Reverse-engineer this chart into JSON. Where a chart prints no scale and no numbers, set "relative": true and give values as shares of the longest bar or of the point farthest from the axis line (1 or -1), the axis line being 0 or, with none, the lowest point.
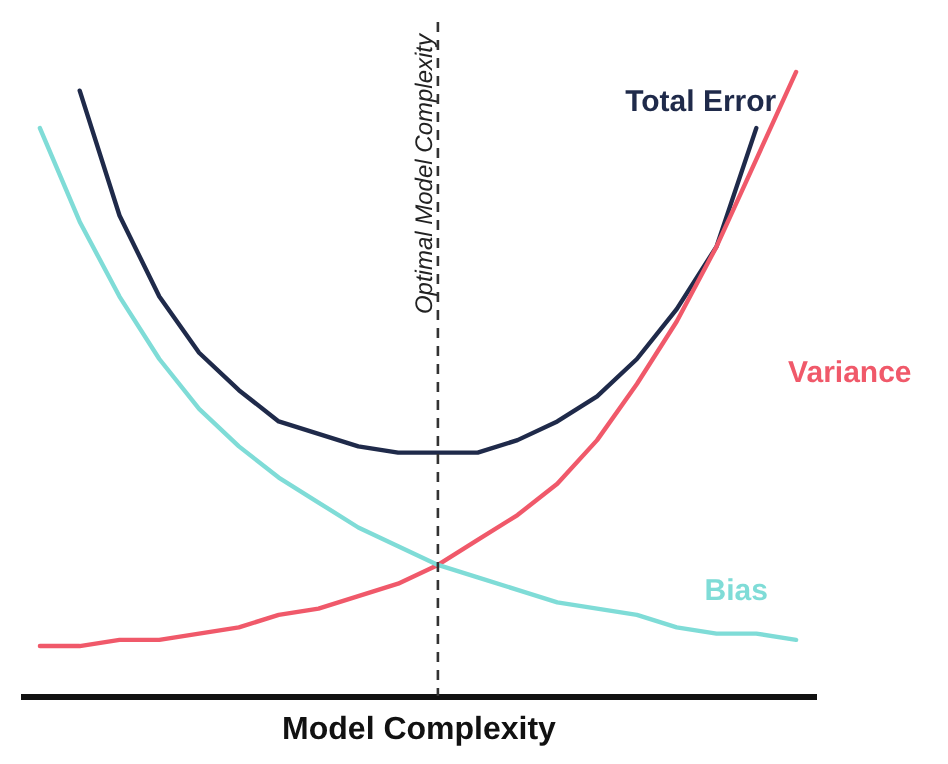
{
  "chart_data": {
    "type": "line",
    "relative": true,
    "xlabel": "Model Complexity",
    "categories": [
      null,
      null,
      null,
      null,
      null,
      null,
      null,
      null,
      null,
      null,
      null,
      null,
      null,
      null,
      null,
      null,
      null,
      null,
      null,
      null
    ],
    "series": [
      {
        "name": "Total Error",
        "color": "#1f2a4a",
        "values": [
          null,
          0.97,
          0.77,
          0.64,
          0.55,
          0.49,
          0.44,
          0.42,
          0.4,
          0.39,
          0.39,
          0.39,
          0.41,
          0.44,
          0.48,
          0.54,
          0.62,
          0.72,
          0.91,
          null
        ]
      },
      {
        "name": "Variance",
        "color": "#f0596a",
        "values": [
          0.08,
          0.08,
          0.09,
          0.09,
          0.1,
          0.11,
          0.13,
          0.14,
          0.16,
          0.18,
          0.21,
          0.25,
          0.29,
          0.34,
          0.41,
          0.5,
          0.6,
          0.72,
          0.86,
          1.0
        ]
      },
      {
        "name": "Bias",
        "color": "#7fdcd7",
        "values": [
          0.91,
          0.76,
          0.64,
          0.54,
          0.46,
          0.4,
          0.35,
          0.31,
          0.27,
          0.24,
          0.21,
          0.19,
          0.17,
          0.15,
          0.14,
          0.13,
          0.11,
          0.1,
          0.1,
          0.09
        ]
      }
    ],
    "annotations": [
      "Optimal Model Complexity"
    ],
    "grid": false
  }
}
